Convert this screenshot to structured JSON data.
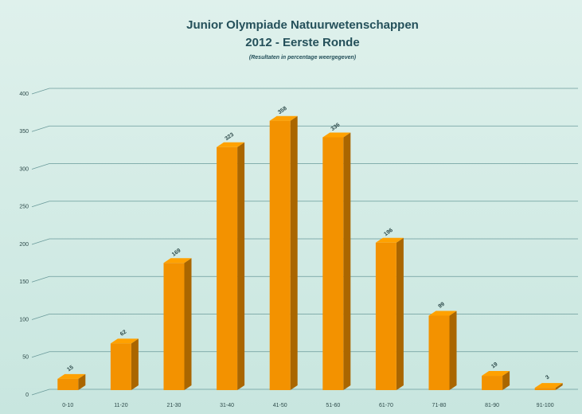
{
  "chart_data": {
    "type": "bar3d",
    "title": "Junior Olympiade Natuurwetenschappen",
    "title_line2": "2012 - Eerste Ronde",
    "subtitle": "(Resultaten in percentage weergegeven)",
    "categories": [
      "0-10",
      "11-20",
      "21-30",
      "31-40",
      "41-50",
      "51-60",
      "61-70",
      "71-80",
      "81-90",
      "91-100"
    ],
    "values": [
      15,
      62,
      169,
      323,
      358,
      336,
      196,
      99,
      19,
      3
    ],
    "color": "#f39200",
    "ylim": [
      0,
      400
    ],
    "yticks": [
      0,
      50,
      100,
      150,
      200,
      250,
      300,
      350,
      400
    ],
    "grid": true
  }
}
